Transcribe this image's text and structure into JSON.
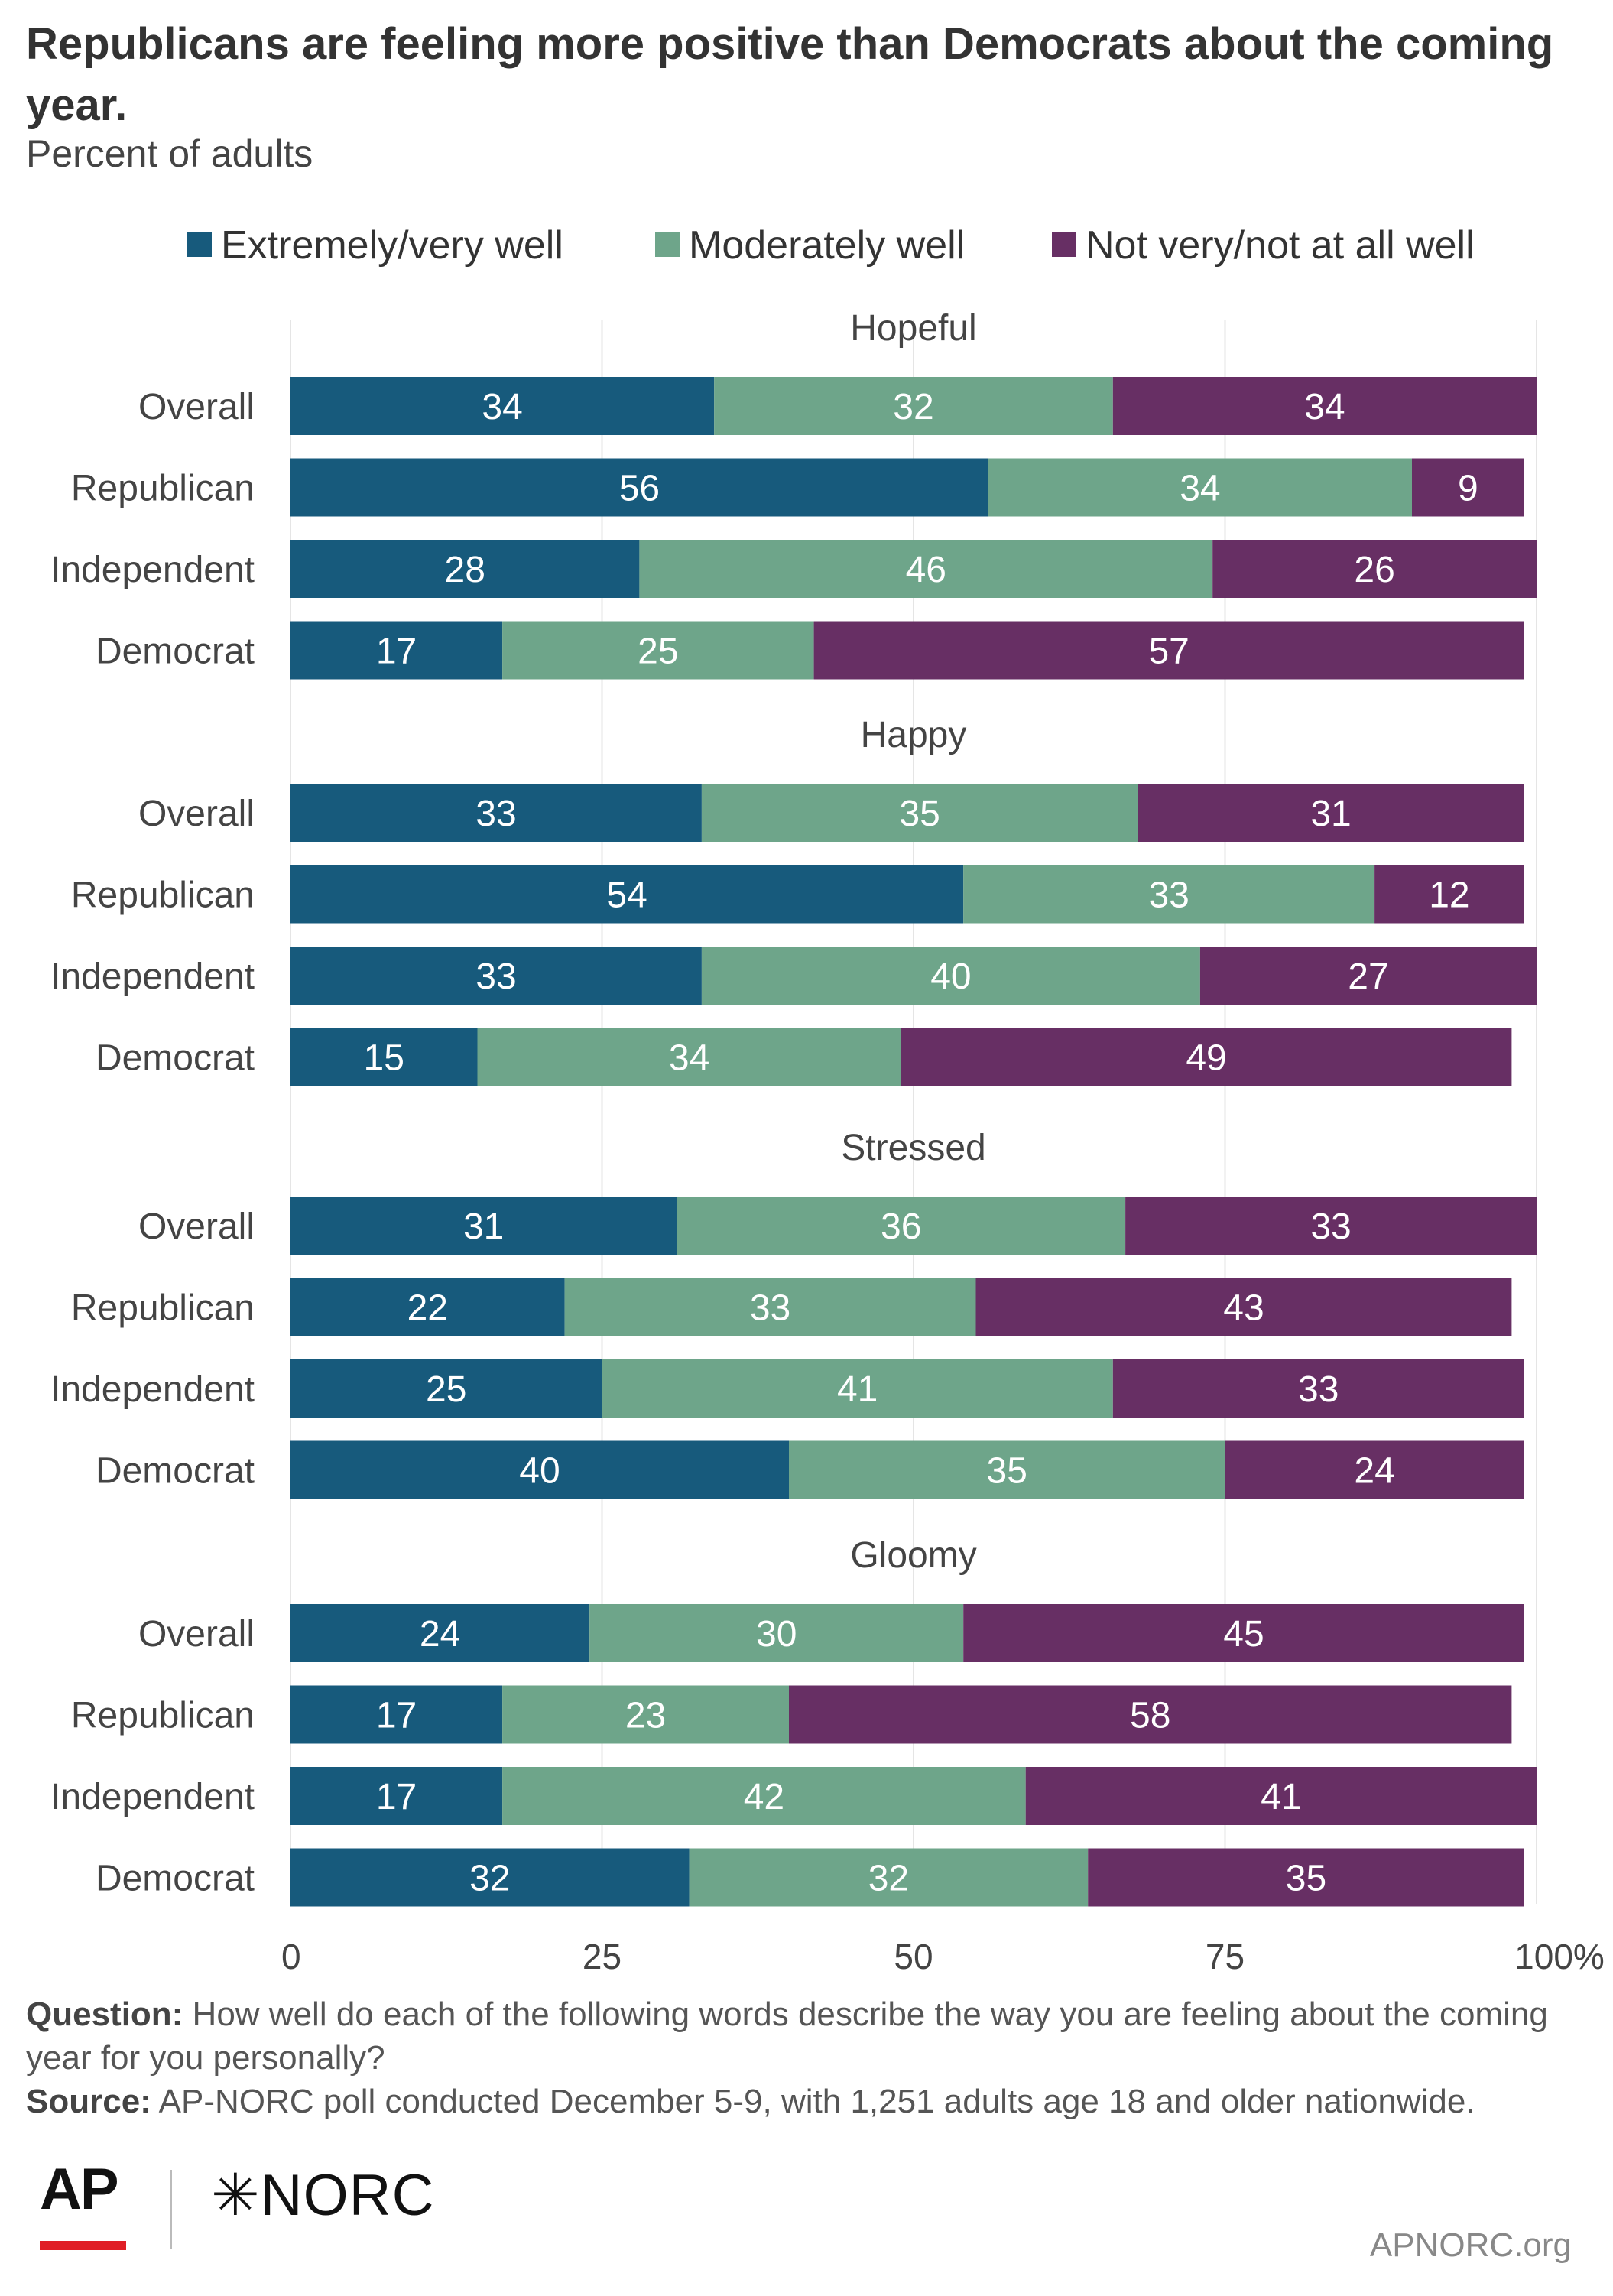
{
  "title": "Republicans are feeling more positive than Democrats about the coming year.",
  "subtitle": "Percent of adults",
  "colors": {
    "extremely_very_well": "#175A7C",
    "moderately_well": "#6EA58A",
    "not_very_not_at_all_well": "#672F64",
    "gridline": "#e5e5e5",
    "label_on_bar": "#ffffff"
  },
  "chart_data": {
    "type": "bar",
    "orientation": "horizontal",
    "stacked": true,
    "legend": [
      "Extremely/very well",
      "Moderately well",
      "Not very/not at all well"
    ],
    "legend_position": "top",
    "x_ticks": [
      "0",
      "25",
      "50",
      "75",
      "100%"
    ],
    "xlim": [
      0,
      100
    ],
    "grid": true,
    "groups": [
      {
        "name": "Hopeful",
        "rows": [
          {
            "label": "Overall",
            "values": [
              34,
              32,
              34
            ]
          },
          {
            "label": "Republican",
            "values": [
              56,
              34,
              9
            ]
          },
          {
            "label": "Independent",
            "values": [
              28,
              46,
              26
            ]
          },
          {
            "label": "Democrat",
            "values": [
              17,
              25,
              57
            ]
          }
        ]
      },
      {
        "name": "Happy",
        "rows": [
          {
            "label": "Overall",
            "values": [
              33,
              35,
              31
            ]
          },
          {
            "label": "Republican",
            "values": [
              54,
              33,
              12
            ]
          },
          {
            "label": "Independent",
            "values": [
              33,
              40,
              27
            ]
          },
          {
            "label": "Democrat",
            "values": [
              15,
              34,
              49
            ]
          }
        ]
      },
      {
        "name": "Stressed",
        "rows": [
          {
            "label": "Overall",
            "values": [
              31,
              36,
              33
            ]
          },
          {
            "label": "Republican",
            "values": [
              22,
              33,
              43
            ]
          },
          {
            "label": "Independent",
            "values": [
              25,
              41,
              33
            ]
          },
          {
            "label": "Democrat",
            "values": [
              40,
              35,
              24
            ]
          }
        ]
      },
      {
        "name": "Gloomy",
        "rows": [
          {
            "label": "Overall",
            "values": [
              24,
              30,
              45
            ]
          },
          {
            "label": "Republican",
            "values": [
              17,
              23,
              58
            ]
          },
          {
            "label": "Independent",
            "values": [
              17,
              42,
              41
            ]
          },
          {
            "label": "Democrat",
            "values": [
              32,
              32,
              35
            ]
          }
        ]
      }
    ]
  },
  "notes": {
    "question_label": "Question:",
    "question_text": " How well do each of the following words describe the way you are feeling about the coming year for you personally?",
    "source_label": "Source:",
    "source_text": " AP-NORC poll conducted December 5-9, with 1,251 adults age 18 and older nationwide."
  },
  "branding": {
    "logo_ap": "AP",
    "logo_norc": "✳NORC",
    "website": "APNORC.org"
  }
}
